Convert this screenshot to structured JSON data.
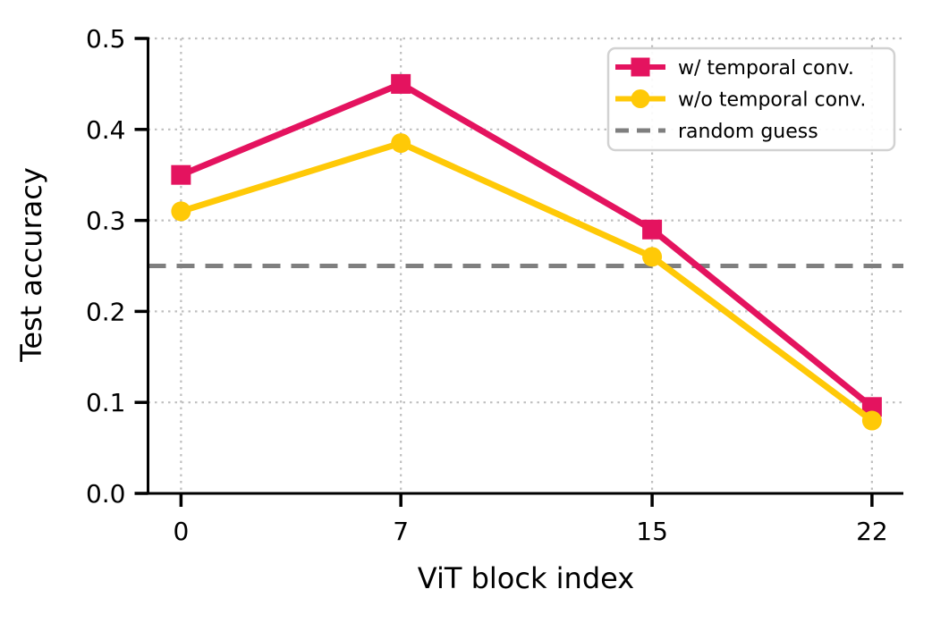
{
  "figure": {
    "background": "#ffffff",
    "text_color": "#000000",
    "grid_color": "#bfbfbf",
    "spine_color": "#000000",
    "legend_border_color": "#d2d2d2",
    "legend_background": "#ffffff"
  },
  "chart_data": {
    "type": "line",
    "title": "",
    "xlabel": "ViT block index",
    "ylabel": "Test accuracy",
    "x": [
      0,
      7,
      15,
      22
    ],
    "xticks": [
      0,
      7,
      15,
      22
    ],
    "yticks": [
      0.0,
      0.1,
      0.2,
      0.3,
      0.4,
      0.5
    ],
    "xlim": [
      -1.05,
      23.0
    ],
    "ylim": [
      0.0,
      0.5
    ],
    "grid": "dotted light-gray grid on both axes",
    "legend_position": "upper right",
    "series": [
      {
        "name": "w/ temporal conv.",
        "type": "line",
        "marker": "square",
        "color": "#e4135f",
        "linewidth": 7,
        "values": [
          0.35,
          0.45,
          0.29,
          0.095
        ]
      },
      {
        "name": "w/o temporal conv.",
        "type": "line",
        "marker": "circle",
        "color": "#ffc907",
        "linewidth": 7,
        "values": [
          0.31,
          0.385,
          0.26,
          0.08
        ]
      },
      {
        "name": "random guess",
        "type": "hline",
        "marker": "none",
        "style": "dashed",
        "color": "#7f7f7f",
        "linewidth": 5,
        "value": 0.25
      }
    ]
  }
}
